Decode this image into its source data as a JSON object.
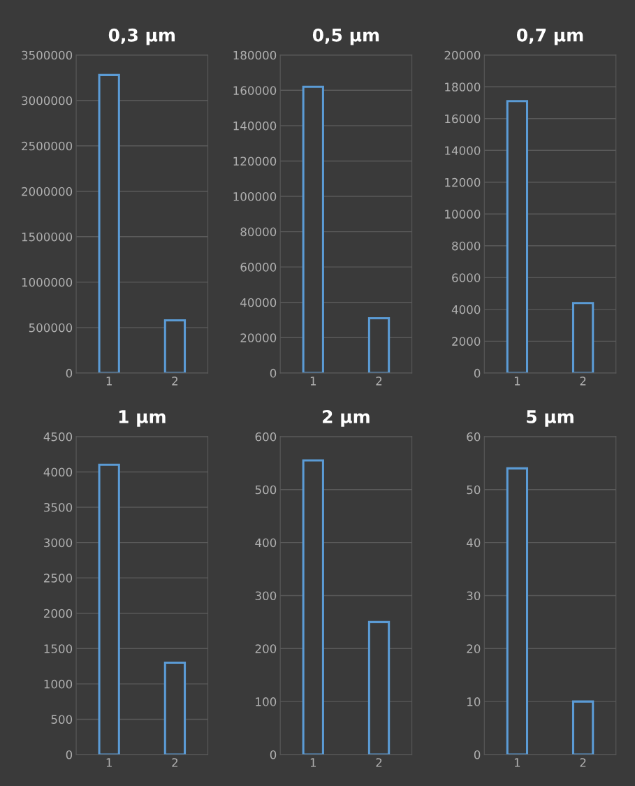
{
  "chart_data": [
    {
      "type": "bar",
      "title": "0,3 µm",
      "categories": [
        "1",
        "2"
      ],
      "values": [
        3280000,
        580000
      ],
      "color": "#5b9bd5",
      "ylim": [
        0,
        3500000
      ],
      "yticks": [
        0,
        500000,
        1000000,
        1500000,
        2000000,
        2500000,
        3000000,
        3500000
      ],
      "grid": "y"
    },
    {
      "type": "bar",
      "title": "0,5 µm",
      "categories": [
        "1",
        "2"
      ],
      "values": [
        162000,
        31000
      ],
      "color": "#5b9bd5",
      "ylim": [
        0,
        180000
      ],
      "yticks": [
        0,
        20000,
        40000,
        60000,
        80000,
        100000,
        120000,
        140000,
        160000,
        180000
      ],
      "grid": "y"
    },
    {
      "type": "bar",
      "title": "0,7 µm",
      "categories": [
        "1",
        "2"
      ],
      "values": [
        17100,
        4400
      ],
      "color": "#5b9bd5",
      "ylim": [
        0,
        20000
      ],
      "yticks": [
        0,
        2000,
        4000,
        6000,
        8000,
        10000,
        12000,
        14000,
        16000,
        18000,
        20000
      ],
      "grid": "y"
    },
    {
      "type": "bar",
      "title": "1 µm",
      "categories": [
        "1",
        "2"
      ],
      "values": [
        4100,
        1300
      ],
      "color": "#5b9bd5",
      "ylim": [
        0,
        4500
      ],
      "yticks": [
        0,
        500,
        1000,
        1500,
        2000,
        2500,
        3000,
        3500,
        4000,
        4500
      ],
      "grid": "y"
    },
    {
      "type": "bar",
      "title": "2 µm",
      "categories": [
        "1",
        "2"
      ],
      "values": [
        555,
        250
      ],
      "color": "#5b9bd5",
      "ylim": [
        0,
        600
      ],
      "yticks": [
        0,
        100,
        200,
        300,
        400,
        500,
        600
      ],
      "grid": "y"
    },
    {
      "type": "bar",
      "title": "5 µm",
      "categories": [
        "1",
        "2"
      ],
      "values": [
        54,
        10
      ],
      "color": "#5b9bd5",
      "ylim": [
        0,
        60
      ],
      "yticks": [
        0,
        10,
        20,
        30,
        40,
        50,
        60
      ],
      "grid": "y"
    }
  ]
}
